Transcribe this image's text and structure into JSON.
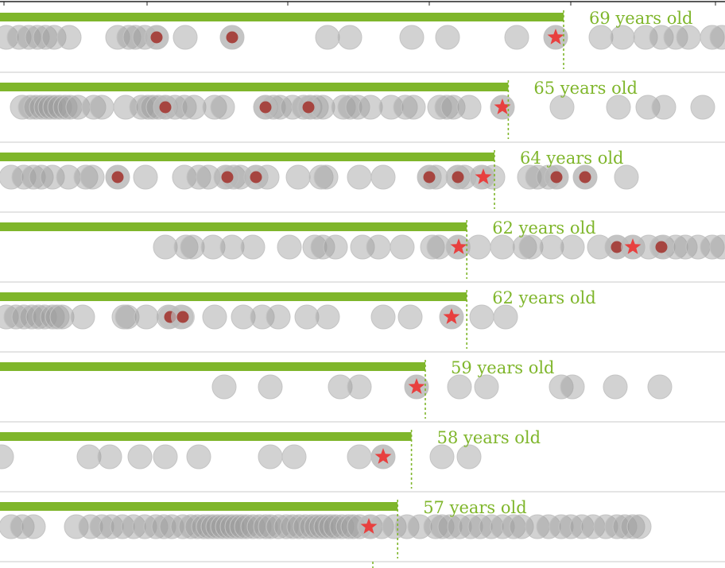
{
  "chart_data": {
    "type": "scatter",
    "colors": {
      "bar": "#7fb62b",
      "label": "#7fb62b",
      "dot": "#9c9c9c",
      "dot_stroke": "#c4c4c4",
      "highlight_dot": "#a64540",
      "star": "#e8403f",
      "row_divider": "#c8c8c8",
      "top_axis": "#222222"
    },
    "rows": [
      {
        "label": "69 years old",
        "age": 69,
        "dots": [
          8,
          24,
          36,
          47,
          57,
          68,
          87,
          148,
          162,
          170,
          182,
          197,
          233,
          292,
          412,
          440,
          518,
          563,
          650,
          699,
          756,
          783,
          812,
          832,
          850,
          866,
          896,
          908
        ],
        "highlights": [
          197,
          292
        ],
        "stars": [
          699
        ]
      },
      {
        "label": "65 years old",
        "age": 65,
        "dots": [
          28,
          38,
          45,
          52,
          58,
          63,
          69,
          75,
          82,
          88,
          98,
          118,
          128,
          158,
          178,
          186,
          192,
          199,
          208,
          220,
          232,
          244,
          270,
          280,
          334,
          344,
          352,
          368,
          382,
          390,
          398,
          406,
          432,
          440,
          450,
          466,
          492,
          510,
          520,
          553,
          562,
          570,
          590,
          632,
          707,
          778,
          815,
          835,
          884
        ],
        "highlights": [
          208,
          334,
          388
        ],
        "stars": [
          632
        ]
      },
      {
        "label": "64 years old",
        "age": 64,
        "dots": [
          14,
          30,
          42,
          52,
          66,
          86,
          108,
          116,
          148,
          183,
          232,
          250,
          262,
          284,
          294,
          302,
          322,
          336,
          375,
          404,
          410,
          452,
          482,
          540,
          548,
          576,
          584,
          606,
          620,
          666,
          676,
          690,
          700,
          736,
          788
        ],
        "highlights": [
          148,
          286,
          322,
          540,
          576,
          700,
          736
        ],
        "stars": [
          608
        ]
      },
      {
        "label": "62 years old",
        "age": 62,
        "dots": [
          208,
          234,
          242,
          268,
          292,
          318,
          364,
          396,
          406,
          422,
          456,
          476,
          506,
          544,
          552,
          576,
          602,
          632,
          660,
          668,
          694,
          720,
          754,
          776,
          796,
          816,
          834,
          850,
          862,
          878,
          896,
          908
        ],
        "highlights": [
          776,
          832
        ],
        "stars": [
          577,
          796
        ]
      },
      {
        "label": "62 years old",
        "age": 62,
        "dots": [
          8,
          20,
          30,
          40,
          48,
          56,
          66,
          72,
          78,
          104,
          156,
          160,
          184,
          212,
          228,
          270,
          306,
          330,
          350,
          386,
          412,
          482,
          516,
          568,
          606,
          636
        ],
        "highlights": [
          214,
          230
        ],
        "stars": [
          568
        ]
      },
      {
        "label": "59 years old",
        "age": 59,
        "dots": [
          282,
          340,
          428,
          452,
          524,
          578,
          612,
          706,
          720,
          774,
          830
        ],
        "highlights": [],
        "stars": [
          524
        ]
      },
      {
        "label": "58 years old",
        "age": 58,
        "dots": [
          2,
          112,
          138,
          176,
          208,
          250,
          340,
          370,
          452,
          482,
          556,
          590
        ],
        "highlights": [],
        "stars": [
          482
        ]
      },
      {
        "label": "57 years old",
        "age": 57,
        "dots": [
          14,
          28,
          42,
          96,
          114,
          128,
          140,
          154,
          168,
          182,
          196,
          206,
          216,
          230,
          240,
          248,
          256,
          262,
          268,
          274,
          280,
          286,
          292,
          298,
          304,
          310,
          318,
          326,
          334,
          340,
          350,
          360,
          368,
          376,
          384,
          392,
          398,
          404,
          410,
          416,
          422,
          430,
          438,
          444,
          452,
          466,
          480,
          496,
          512,
          528,
          548,
          556,
          566,
          578,
          592,
          604,
          618,
          632,
          646,
          656,
          676,
          690,
          706,
          718,
          732,
          746,
          762,
          776,
          786,
          796,
          804
        ],
        "highlights": [],
        "stars": [
          464
        ]
      }
    ]
  }
}
